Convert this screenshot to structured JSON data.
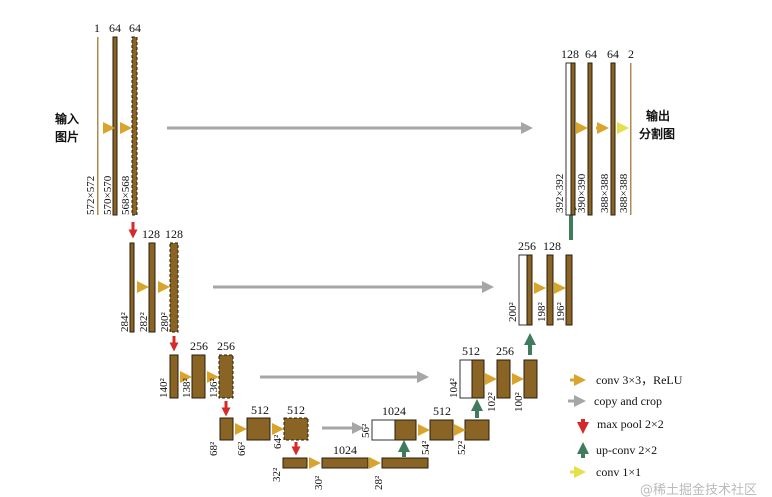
{
  "colors": {
    "feature_map": "#8a6425",
    "conv": "#d9a42c",
    "copy": "#a6a6a6",
    "pool": "#d42a2a",
    "upconv": "#3f7b5c",
    "conv1x1": "#e3e04a"
  },
  "input_label": [
    "输入",
    "图片"
  ],
  "output_label": [
    "输出",
    "分割图"
  ],
  "encoder": {
    "l1": {
      "channels": [
        "1",
        "64",
        "64"
      ],
      "dims": [
        "572×572",
        "570×570",
        "568×568"
      ]
    },
    "l2": {
      "channels": [
        "128",
        "128"
      ],
      "dims": [
        "284²",
        "282²",
        "280²"
      ]
    },
    "l3": {
      "channels": [
        "256",
        "256"
      ],
      "dims": [
        "140²",
        "138²",
        "136²"
      ]
    },
    "l4": {
      "channels": [
        "512",
        "512"
      ],
      "dims": [
        "68²",
        "66²",
        "64²"
      ]
    },
    "l5": {
      "channels": [
        "1024"
      ],
      "dims": [
        "32²",
        "30²",
        "28²"
      ]
    }
  },
  "decoder": {
    "l4": {
      "channels": [
        "1024",
        "512"
      ],
      "dims": [
        "56²",
        "54²",
        "52²"
      ]
    },
    "l3": {
      "channels": [
        "512",
        "256"
      ],
      "dims": [
        "104²",
        "102²",
        "100²"
      ]
    },
    "l2": {
      "channels": [
        "256",
        "128"
      ],
      "dims": [
        "200²",
        "198²",
        "196²"
      ]
    },
    "l1": {
      "channels": [
        "128",
        "64",
        "64",
        "2"
      ],
      "dims": [
        "392×392",
        "390×390",
        "388×388",
        "388×388"
      ]
    }
  },
  "legend": [
    "conv 3×3，ReLU",
    "copy and crop",
    "max pool 2×2",
    "up-conv 2×2",
    "conv 1×1"
  ],
  "watermark": "@稀土掘金技术社区"
}
